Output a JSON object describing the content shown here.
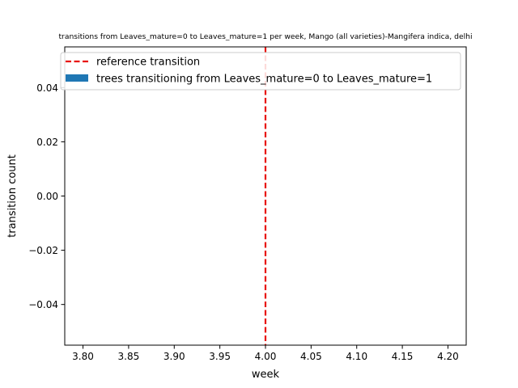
{
  "chart_data": {
    "type": "bar",
    "title": "transitions from Leaves_mature=0 to Leaves_mature=1 per week, Mango (all varieties)-Mangifera indica, delhi",
    "xlabel": "week",
    "ylabel": "transition count",
    "xlim": [
      3.78,
      4.22
    ],
    "ylim": [
      -0.055,
      0.055
    ],
    "x_ticks": [
      3.8,
      3.85,
      3.9,
      3.95,
      4.0,
      4.05,
      4.1,
      4.15,
      4.2
    ],
    "x_tick_labels": [
      "3.80",
      "3.85",
      "3.90",
      "3.95",
      "4.00",
      "4.05",
      "4.10",
      "4.15",
      "4.20"
    ],
    "y_ticks": [
      -0.04,
      -0.02,
      0.0,
      0.02,
      0.04
    ],
    "y_tick_labels": [
      "−0.04",
      "−0.02",
      "0.00",
      "0.02",
      "0.04"
    ],
    "series": [
      {
        "name": "trees transitioning from Leaves_mature=0 to Leaves_mature=1",
        "x": [],
        "values": [],
        "color": "#1f77b4"
      }
    ],
    "reference_line": {
      "name": "reference transition",
      "x": 4.0,
      "color": "#d62728",
      "style": "dashed"
    },
    "legend": {
      "location": "top-left",
      "entries": [
        {
          "label": "reference transition",
          "kind": "dashed-line",
          "color": "#e8120c"
        },
        {
          "label": "trees transitioning from Leaves_mature=0 to Leaves_mature=1",
          "kind": "patch",
          "color": "#1f77b4"
        }
      ]
    },
    "grid": false
  }
}
